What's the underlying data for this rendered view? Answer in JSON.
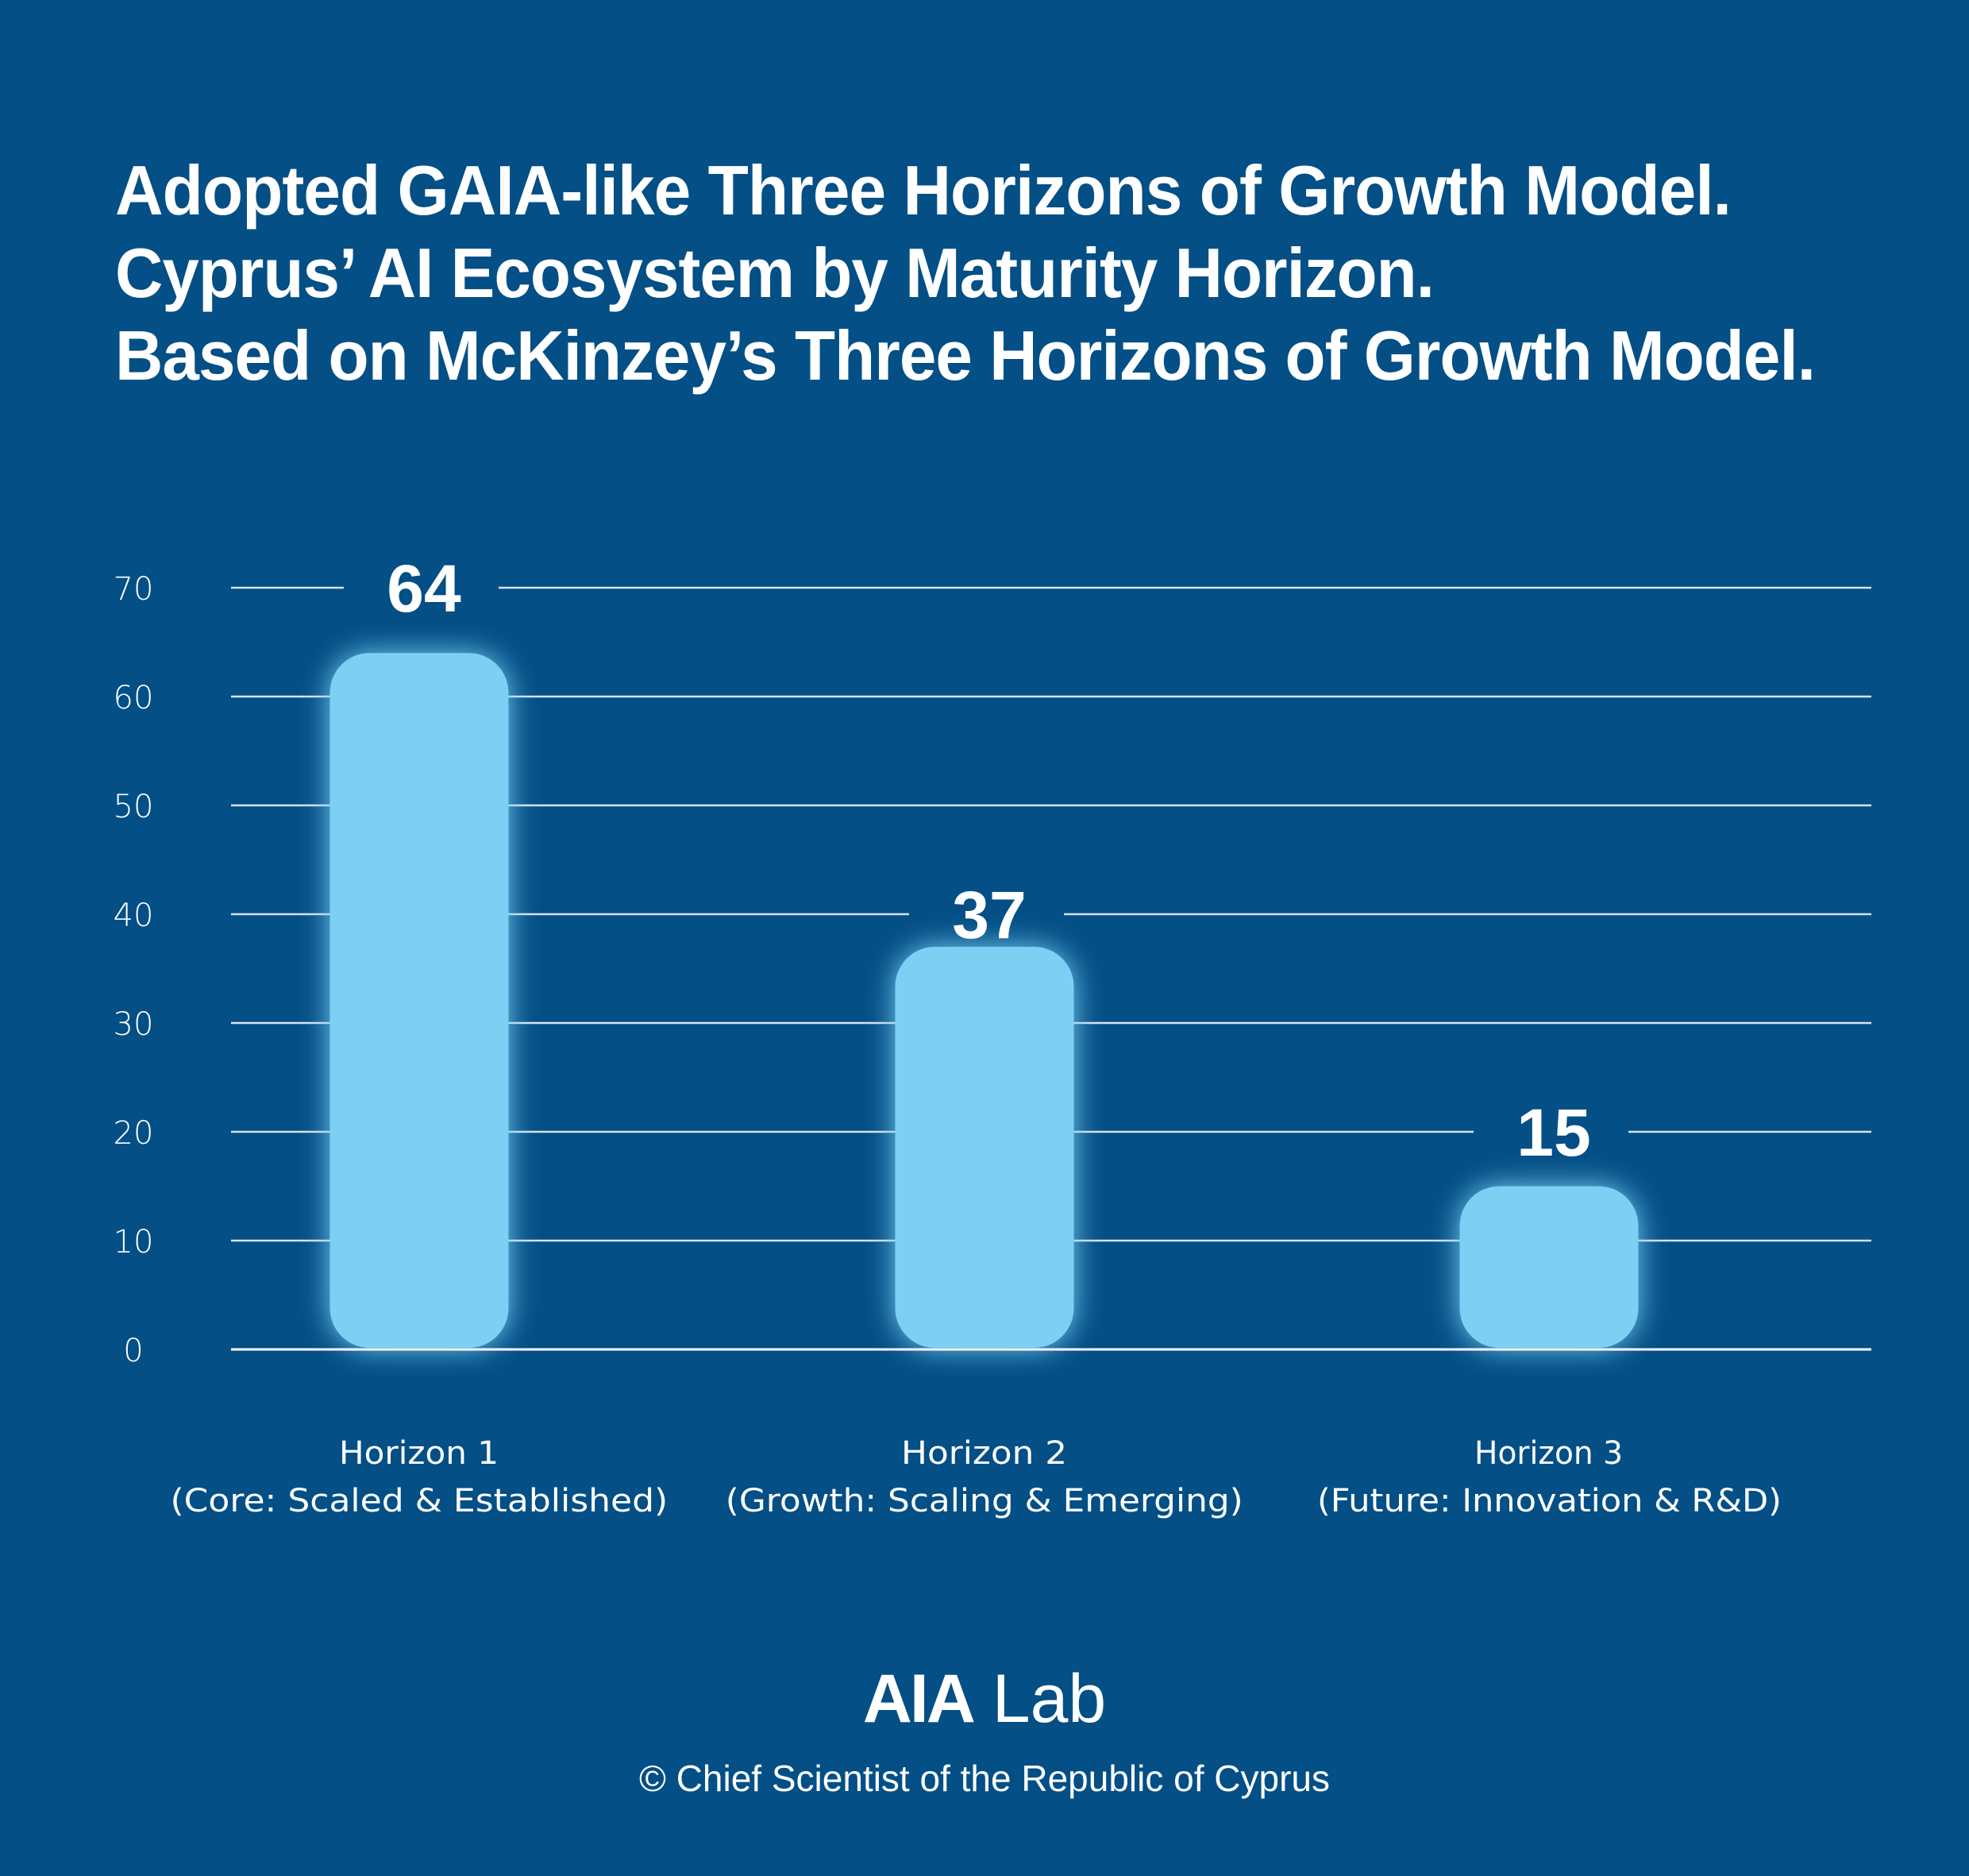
{
  "header": {
    "title_lines": [
      "Adopted GAIA-like Three Horizons of Growth Model.",
      "Cyprus’ AI Ecosystem by Maturity Horizon.",
      "Based on McKinzey’s Three Horizons of Growth Model."
    ]
  },
  "colors": {
    "background": "#034f86",
    "bar": "#7dd0f4",
    "glow": "#9fdcff",
    "gridline": "#d6e2ee",
    "text": "#ffffff"
  },
  "chart_data": {
    "type": "bar",
    "title": "Adopted GAIA-like Three Horizons of Growth Model. Cyprus’ AI Ecosystem by Maturity Horizon. Based on McKinzey’s Three Horizons of Growth Model.",
    "categories": [
      {
        "line1": "Horizon 1",
        "line2": "(Core: Scaled & Established)"
      },
      {
        "line1": "Horizon 2",
        "line2": "(Growth: Scaling & Emerging)"
      },
      {
        "line1": "Horizon 3",
        "line2": "(Future: Innovation & R&D)"
      }
    ],
    "values": [
      64,
      37,
      15
    ],
    "value_labels": [
      "64",
      "37",
      "15"
    ],
    "xlabel": "",
    "ylabel": "",
    "ylim": [
      0,
      70
    ],
    "yticks": [
      0,
      10,
      20,
      30,
      40,
      50,
      60,
      70
    ],
    "ytick_labels": [
      "0",
      "10",
      "20",
      "30",
      "40",
      "50",
      "60",
      "70"
    ],
    "grid": true,
    "legend": "none"
  },
  "footer": {
    "brand_bold": "AIA",
    "brand_regular": "Lab",
    "copyright": "© Chief Scientist of the Republic of Cyprus"
  }
}
